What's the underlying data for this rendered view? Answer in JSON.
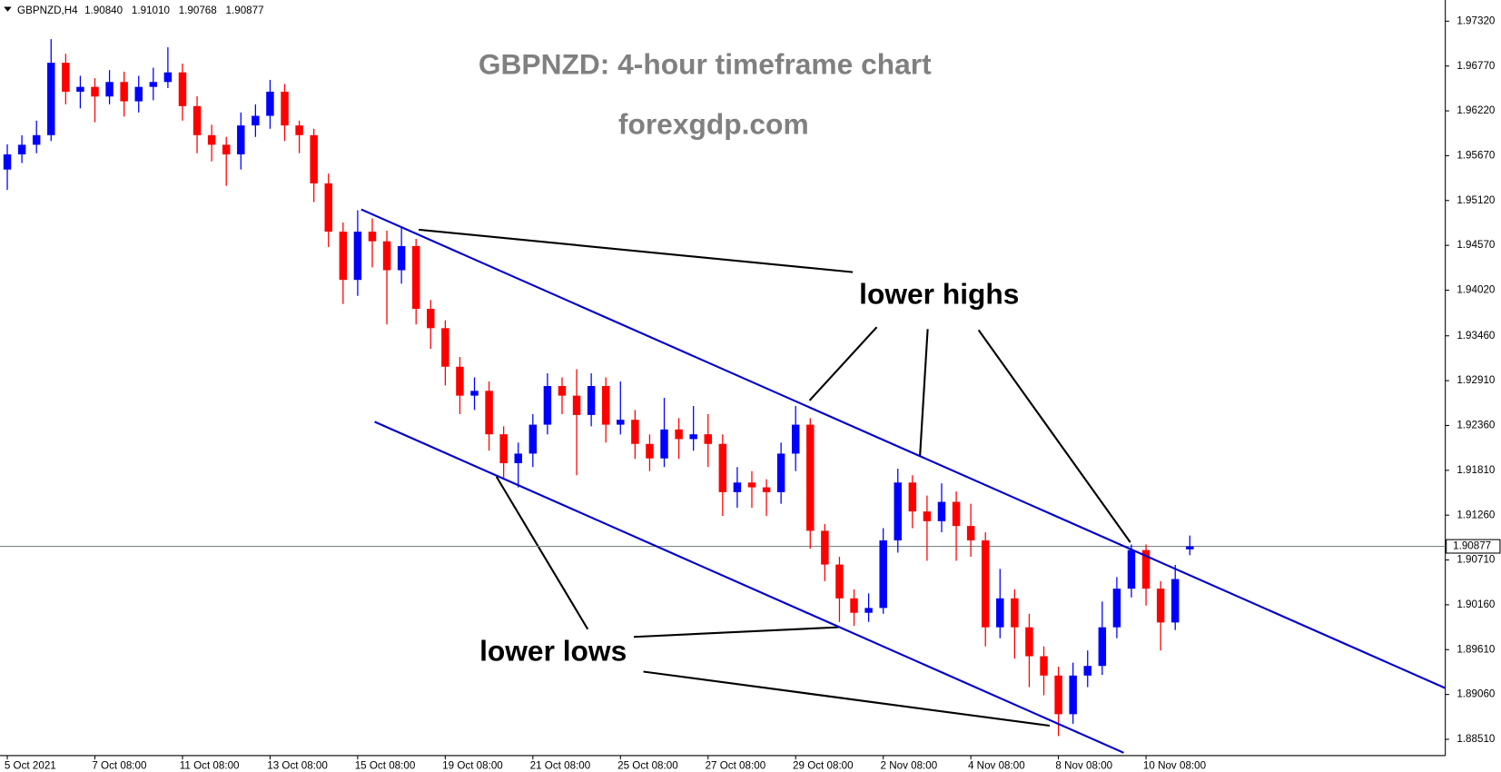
{
  "header": {
    "symbol": "GBPNZD,H4",
    "ohlc": [
      "1.90840",
      "1.91010",
      "1.90768",
      "1.90877"
    ]
  },
  "chart_data": {
    "type": "candlestick",
    "title": "GBPNZD: 4-hour timeframe chart",
    "subtitle": "forexgdp.com",
    "annotations": [
      "lower highs",
      "lower lows"
    ],
    "up_color": "#0000ff",
    "down_color": "#ff0000",
    "xlim": [
      -0.5,
      98.5
    ],
    "ylim": [
      1.8831,
      1.9758
    ],
    "xticks": [
      {
        "value": 0,
        "label": "5 Oct 2021"
      },
      {
        "value": 6,
        "label": "7 Oct 08:00"
      },
      {
        "value": 12,
        "label": "11 Oct 08:00"
      },
      {
        "value": 18,
        "label": "13 Oct 08:00"
      },
      {
        "value": 24,
        "label": "15 Oct 08:00"
      },
      {
        "value": 30,
        "label": "19 Oct 08:00"
      },
      {
        "value": 36,
        "label": "21 Oct 08:00"
      },
      {
        "value": 42,
        "label": "25 Oct 08:00"
      },
      {
        "value": 48,
        "label": "27 Oct 08:00"
      },
      {
        "value": 54,
        "label": "29 Oct 08:00"
      },
      {
        "value": 60,
        "label": "2 Nov 08:00"
      },
      {
        "value": 66,
        "label": "4 Nov 08:00"
      },
      {
        "value": 72,
        "label": "8 Nov 08:00"
      },
      {
        "value": 78,
        "label": "10 Nov 08:00"
      }
    ],
    "yticks": [
      {
        "value": 1.9732,
        "label": "1.97320"
      },
      {
        "value": 1.9677,
        "label": "1.96770"
      },
      {
        "value": 1.9622,
        "label": "1.96220"
      },
      {
        "value": 1.9567,
        "label": "1.95670"
      },
      {
        "value": 1.9512,
        "label": "1.95120"
      },
      {
        "value": 1.9457,
        "label": "1.94570"
      },
      {
        "value": 1.9402,
        "label": "1.94020"
      },
      {
        "value": 1.9346,
        "label": "1.93460"
      },
      {
        "value": 1.9291,
        "label": "1.92910"
      },
      {
        "value": 1.9236,
        "label": "1.92360"
      },
      {
        "value": 1.9181,
        "label": "1.91810"
      },
      {
        "value": 1.9126,
        "label": "1.91260"
      },
      {
        "value": 1.9071,
        "label": "1.90710"
      },
      {
        "value": 1.9016,
        "label": "1.90160"
      },
      {
        "value": 1.8961,
        "label": "1.89610"
      },
      {
        "value": 1.8906,
        "label": "1.89060"
      },
      {
        "value": 1.8851,
        "label": "1.88510"
      }
    ],
    "current_price": 1.90877,
    "trendlines": [
      {
        "color": "#0000cd",
        "x": [
          24.24,
          98.5
        ],
        "y": [
          1.95011,
          1.89138
        ]
      },
      {
        "color": "#0000cd",
        "x": [
          25.16,
          76.47
        ],
        "y": [
          1.92406,
          1.88345
        ]
      }
    ],
    "open": [
      1.955,
      1.95686,
      1.95804,
      1.95922,
      1.9681,
      1.96455,
      1.96514,
      1.96396,
      1.96574,
      1.96337,
      1.96514,
      1.96574,
      1.96692,
      1.96278,
      1.95922,
      1.95804,
      1.95686,
      1.96041,
      1.96159,
      1.96455,
      1.96041,
      1.95922,
      1.9533,
      1.94738,
      1.94146,
      1.94738,
      1.9462,
      1.94265,
      1.94561,
      1.93791,
      1.93554,
      1.93081,
      1.92726,
      1.92785,
      1.92252,
      1.91897,
      1.92015,
      1.9237,
      1.92844,
      1.92726,
      1.92489,
      1.92844,
      1.9237,
      1.9243,
      1.92134,
      1.91956,
      1.92311,
      1.92193,
      1.92252,
      1.92134,
      1.91542,
      1.9166,
      1.91601,
      1.91542,
      1.92015,
      1.9237,
      1.91068,
      1.90654,
      1.90239,
      1.90062,
      1.90121,
      1.9095,
      1.9166,
      1.91305,
      1.91186,
      1.91423,
      1.91127,
      1.9095,
      1.89884,
      1.90239,
      1.89884,
      1.89529,
      1.89292,
      1.88818,
      1.89292,
      1.8941,
      1.89884,
      1.90358,
      1.90831,
      1.90358,
      1.89943,
      1.9084
    ],
    "high": [
      1.9581,
      1.9592,
      1.961,
      1.971,
      1.9692,
      1.9665,
      1.9662,
      1.9672,
      1.967,
      1.9665,
      1.9675,
      1.97,
      1.968,
      1.964,
      1.9605,
      1.959,
      1.962,
      1.963,
      1.966,
      1.9655,
      1.961,
      1.96,
      1.9545,
      1.9485,
      1.95,
      1.949,
      1.9475,
      1.948,
      1.9465,
      1.939,
      1.9365,
      1.932,
      1.9295,
      1.929,
      1.9235,
      1.9215,
      1.925,
      1.93,
      1.9295,
      1.9305,
      1.93,
      1.9295,
      1.929,
      1.9255,
      1.9225,
      1.927,
      1.9245,
      1.926,
      1.925,
      1.9225,
      1.9185,
      1.918,
      1.917,
      1.9215,
      1.926,
      1.9245,
      1.9115,
      1.9075,
      1.9035,
      1.903,
      1.911,
      1.9183,
      1.9175,
      1.915,
      1.9165,
      1.9155,
      1.914,
      1.9105,
      1.906,
      1.9035,
      1.9005,
      1.8965,
      1.894,
      1.8945,
      1.896,
      1.902,
      1.905,
      1.909,
      1.909,
      1.9045,
      1.9065,
      1.9101
    ],
    "low": [
      1.9525,
      1.9558,
      1.957,
      1.9585,
      1.963,
      1.9625,
      1.9608,
      1.963,
      1.9615,
      1.962,
      1.9635,
      1.965,
      1.961,
      1.957,
      1.956,
      1.953,
      1.955,
      1.959,
      1.96,
      1.9585,
      1.957,
      1.951,
      1.9455,
      1.9385,
      1.9395,
      1.943,
      1.936,
      1.941,
      1.936,
      1.933,
      1.9285,
      1.925,
      1.9255,
      1.9205,
      1.917,
      1.916,
      1.9185,
      1.9225,
      1.925,
      1.9175,
      1.9235,
      1.9215,
      1.9225,
      1.9195,
      1.918,
      1.9185,
      1.9195,
      1.9205,
      1.9185,
      1.9125,
      1.9135,
      1.9135,
      1.9125,
      1.914,
      1.918,
      1.9085,
      1.9045,
      1.8995,
      1.899,
      1.8995,
      1.9005,
      1.908,
      1.911,
      1.907,
      1.9105,
      1.907,
      1.9075,
      1.8965,
      1.8975,
      1.895,
      1.8915,
      1.8905,
      1.8855,
      1.887,
      1.8915,
      1.893,
      1.8975,
      1.9025,
      1.9015,
      1.896,
      1.8985,
      1.90768
    ],
    "close": [
      1.95686,
      1.95804,
      1.95922,
      1.9681,
      1.96455,
      1.96514,
      1.96396,
      1.96574,
      1.96337,
      1.96514,
      1.96574,
      1.96692,
      1.96278,
      1.95922,
      1.95804,
      1.95686,
      1.96041,
      1.96159,
      1.96455,
      1.96041,
      1.95922,
      1.9533,
      1.94738,
      1.94146,
      1.94738,
      1.9462,
      1.94265,
      1.94561,
      1.93791,
      1.93554,
      1.93081,
      1.92726,
      1.92785,
      1.92252,
      1.91897,
      1.92015,
      1.9237,
      1.92844,
      1.92726,
      1.92489,
      1.92844,
      1.9237,
      1.9243,
      1.92134,
      1.91956,
      1.92311,
      1.92193,
      1.92252,
      1.92134,
      1.91542,
      1.9166,
      1.91601,
      1.91542,
      1.92015,
      1.9237,
      1.91068,
      1.90654,
      1.90239,
      1.90062,
      1.90121,
      1.9095,
      1.9166,
      1.91305,
      1.91186,
      1.91423,
      1.91127,
      1.9095,
      1.89884,
      1.90239,
      1.89884,
      1.89529,
      1.89292,
      1.88818,
      1.89292,
      1.8941,
      1.89884,
      1.90358,
      1.90831,
      1.90358,
      1.89943,
      1.90476,
      1.90877
    ]
  }
}
